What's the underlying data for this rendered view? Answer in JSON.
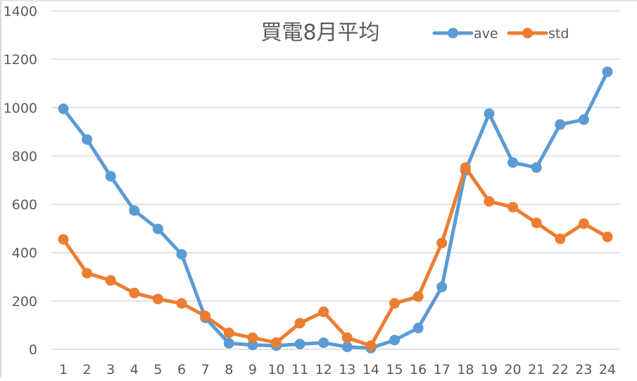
{
  "chart_data": {
    "type": "line",
    "title": "買電8月平均",
    "xlabel": "",
    "ylabel": "",
    "categories": [
      "1",
      "2",
      "3",
      "4",
      "5",
      "6",
      "7",
      "8",
      "9",
      "10",
      "11",
      "12",
      "13",
      "14",
      "15",
      "16",
      "17",
      "18",
      "19",
      "20",
      "21",
      "22",
      "23",
      "24"
    ],
    "series": [
      {
        "name": "ave",
        "color": "#5b9bd5",
        "values": [
          995,
          868,
          716,
          574,
          498,
          393,
          130,
          25,
          18,
          15,
          22,
          27,
          10,
          5,
          38,
          88,
          258,
          740,
          975,
          773,
          752,
          930,
          950,
          1148
        ]
      },
      {
        "name": "std",
        "color": "#ed7d31",
        "values": [
          455,
          315,
          285,
          233,
          208,
          190,
          138,
          68,
          48,
          28,
          108,
          155,
          48,
          15,
          190,
          218,
          440,
          752,
          612,
          588,
          523,
          457,
          520,
          465
        ]
      }
    ],
    "ylim": [
      0,
      1400
    ],
    "yticks": [
      0,
      200,
      400,
      600,
      800,
      1000,
      1200,
      1400
    ],
    "ytick_labels": [
      "0",
      "200",
      "400",
      "600",
      "800",
      "1000",
      "1200",
      "1400"
    ],
    "grid": true,
    "legend_position": "top-right"
  }
}
